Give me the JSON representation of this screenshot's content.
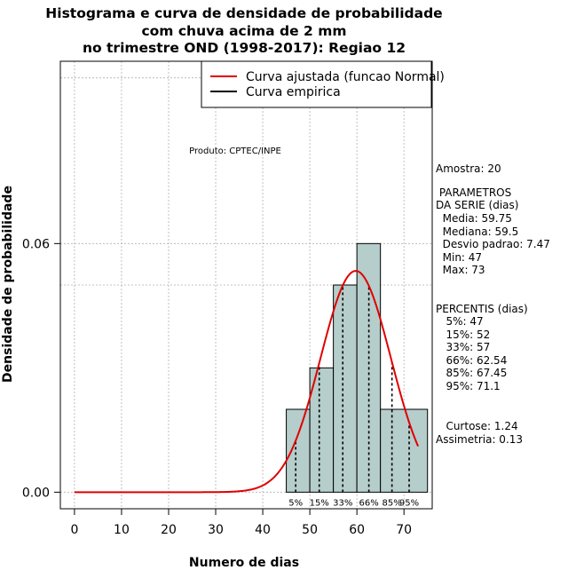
{
  "chart_data": {
    "type": "bar",
    "title_lines": [
      "Histograma e curva de densidade de probabilidade",
      "com chuva acima de 2 mm",
      "no trimestre OND (1998-2017): Regiao 12"
    ],
    "xlabel": "Numero de dias",
    "ylabel": "Densidade de probabilidade",
    "xlim": [
      -3,
      76
    ],
    "ylim": [
      -0.004,
      0.104
    ],
    "x_ticks": [
      0,
      10,
      20,
      30,
      40,
      50,
      60,
      70
    ],
    "y_ticks": [
      0.0,
      0.06
    ],
    "y_tick_labels": [
      "0.00",
      "0.06"
    ],
    "grid": true,
    "grid_x": [
      0,
      10,
      20,
      30,
      40,
      50,
      60,
      70
    ],
    "grid_y": [
      0.05,
      0.1
    ],
    "watermark": "Produto: CPTEC/INPE",
    "bins": [
      {
        "x0": 45,
        "x1": 50,
        "density": 0.02
      },
      {
        "x0": 50,
        "x1": 55,
        "density": 0.03
      },
      {
        "x0": 55,
        "x1": 60,
        "density": 0.05
      },
      {
        "x0": 60,
        "x1": 65,
        "density": 0.06
      },
      {
        "x0": 65,
        "x1": 75,
        "density": 0.02
      }
    ],
    "normal_fit": {
      "mean": 59.75,
      "sd": 7.47,
      "x_from": 0,
      "x_to": 73
    },
    "percentile_lines": [
      {
        "label": "5%",
        "x": 47
      },
      {
        "label": "15%",
        "x": 52
      },
      {
        "label": "33%",
        "x": 57
      },
      {
        "label": "66%",
        "x": 62.54
      },
      {
        "label": "85%",
        "x": 67.45
      },
      {
        "label": "95%",
        "x": 71.1
      }
    ],
    "legend": {
      "position": "top-right",
      "entries": [
        {
          "label": "Curva ajustada (funcao Normal)",
          "color": "#e00000"
        },
        {
          "label": "Curva empirica",
          "color": "#000000"
        }
      ]
    },
    "colors": {
      "bar_fill": "#b5cdcb",
      "fit_curve": "#e00000",
      "axis": "#000000",
      "grid": "#b0b0b0"
    }
  },
  "side_panel": {
    "amostra": "Amostra: 20",
    "parametros_title_1": " PARAMETROS",
    "parametros_title_2": "DA SERIE (dias)",
    "media": "  Media: 59.75",
    "mediana": "  Mediana: 59.5",
    "desvio": "  Desvio padrao: 7.47",
    "min": "  Min: 47",
    "max": "  Max: 73",
    "percentis_title": "PERCENTIS (dias)",
    "p5": "   5%: 47",
    "p15": "   15%: 52",
    "p33": "   33%: 57",
    "p66": "   66%: 62.54",
    "p85": "   85%: 67.45",
    "p95": "   95%: 71.1",
    "curtose": "   Curtose: 1.24",
    "assimetria": "Assimetria: 0.13"
  }
}
